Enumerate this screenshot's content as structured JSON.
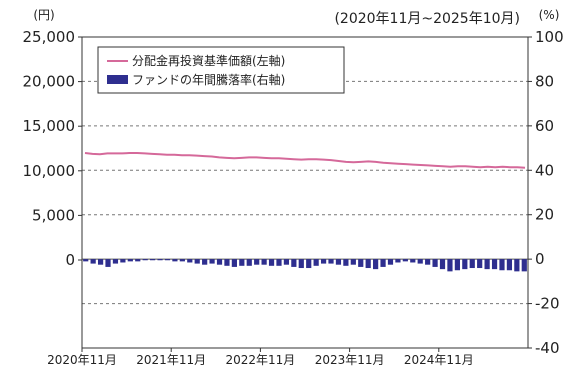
{
  "chart_data": {
    "type": "line",
    "period_label": "(2020年11月~2025年10月)",
    "left_axis": {
      "unit": "(円)",
      "ylim": [
        0,
        25000
      ],
      "ticks": [
        0,
        5000,
        10000,
        15000,
        20000,
        25000
      ],
      "tick_labels": [
        "0",
        "5,000",
        "10,000",
        "15,000",
        "20,000",
        "25,000"
      ]
    },
    "right_axis": {
      "unit": "(%)",
      "ylim": [
        -40,
        100
      ],
      "ticks": [
        -40,
        -20,
        0,
        20,
        40,
        60,
        80,
        100
      ],
      "tick_labels": [
        "-40",
        "-20",
        "0",
        "20",
        "40",
        "60",
        "80",
        "100"
      ]
    },
    "x_ticks": [
      "2020年11月",
      "2021年11月",
      "2022年11月",
      "2023年11月",
      "2024年11月"
    ],
    "grid": "horizontal dashed",
    "legend": {
      "placement": "top-left",
      "items": [
        {
          "label": "分配金再投資基準価額(左軸)",
          "color": "#d5699a",
          "kind": "line"
        },
        {
          "label": "ファンドの年間騰落率(右軸)",
          "color": "#2e2e8f",
          "kind": "bar"
        }
      ]
    },
    "series": [
      {
        "name": "分配金再投資基準価額(左軸)",
        "axis": "left",
        "type": "line",
        "color": "#d5699a",
        "values": [
          12000,
          11900,
          11850,
          11950,
          11950,
          11950,
          12000,
          12000,
          11950,
          11900,
          11850,
          11800,
          11800,
          11750,
          11750,
          11700,
          11650,
          11600,
          11500,
          11450,
          11400,
          11450,
          11500,
          11500,
          11450,
          11400,
          11400,
          11350,
          11300,
          11250,
          11300,
          11300,
          11250,
          11200,
          11100,
          11000,
          10950,
          11000,
          11050,
          11000,
          10900,
          10850,
          10800,
          10750,
          10700,
          10650,
          10600,
          10550,
          10500,
          10450,
          10500,
          10500,
          10450,
          10400,
          10450,
          10400,
          10450,
          10400,
          10400,
          10350
        ]
      },
      {
        "name": "ファンドの年間騰落率(右軸)",
        "axis": "right",
        "type": "bar",
        "color": "#2e2e8f",
        "values": [
          -1.0,
          -2.0,
          -2.5,
          -3.5,
          -2.0,
          -1.5,
          -1.0,
          -1.0,
          -0.5,
          -0.5,
          -0.5,
          -0.5,
          -1.0,
          -1.0,
          -1.5,
          -2.0,
          -2.5,
          -2.0,
          -2.5,
          -3.0,
          -3.5,
          -3.0,
          -3.0,
          -2.5,
          -2.5,
          -3.0,
          -3.0,
          -2.5,
          -3.5,
          -4.0,
          -4.0,
          -3.0,
          -2.0,
          -2.0,
          -2.5,
          -3.0,
          -2.5,
          -3.5,
          -4.0,
          -4.5,
          -3.5,
          -2.5,
          -1.5,
          -1.0,
          -1.5,
          -2.0,
          -2.5,
          -3.5,
          -4.5,
          -5.5,
          -5.0,
          -4.5,
          -4.0,
          -4.0,
          -4.5,
          -4.5,
          -5.0,
          -5.0,
          -5.5,
          -5.5
        ]
      }
    ]
  }
}
